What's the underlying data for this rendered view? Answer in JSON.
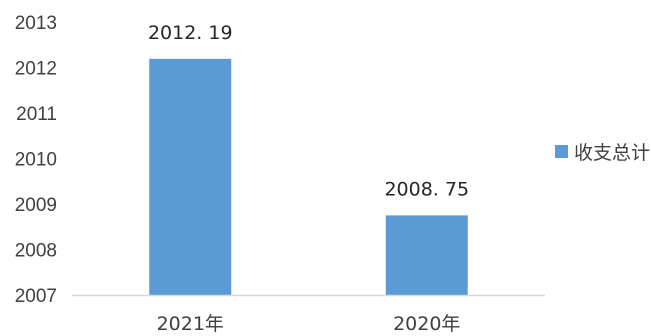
{
  "chart_data": {
    "type": "bar",
    "title": "",
    "xlabel": "",
    "ylabel": "",
    "categories": [
      "2021年",
      "2020年"
    ],
    "series": [
      {
        "name": "收支总计",
        "values": [
          2012.19,
          2008.75
        ],
        "color": "#5B9BD5"
      }
    ],
    "ylim": [
      2007,
      2013
    ],
    "yticks": [
      2007,
      2008,
      2009,
      2010,
      2011,
      2012,
      2013
    ],
    "data_labels": [
      "2012. 19",
      "2008. 75"
    ],
    "grid": false,
    "legend_position": "right"
  }
}
